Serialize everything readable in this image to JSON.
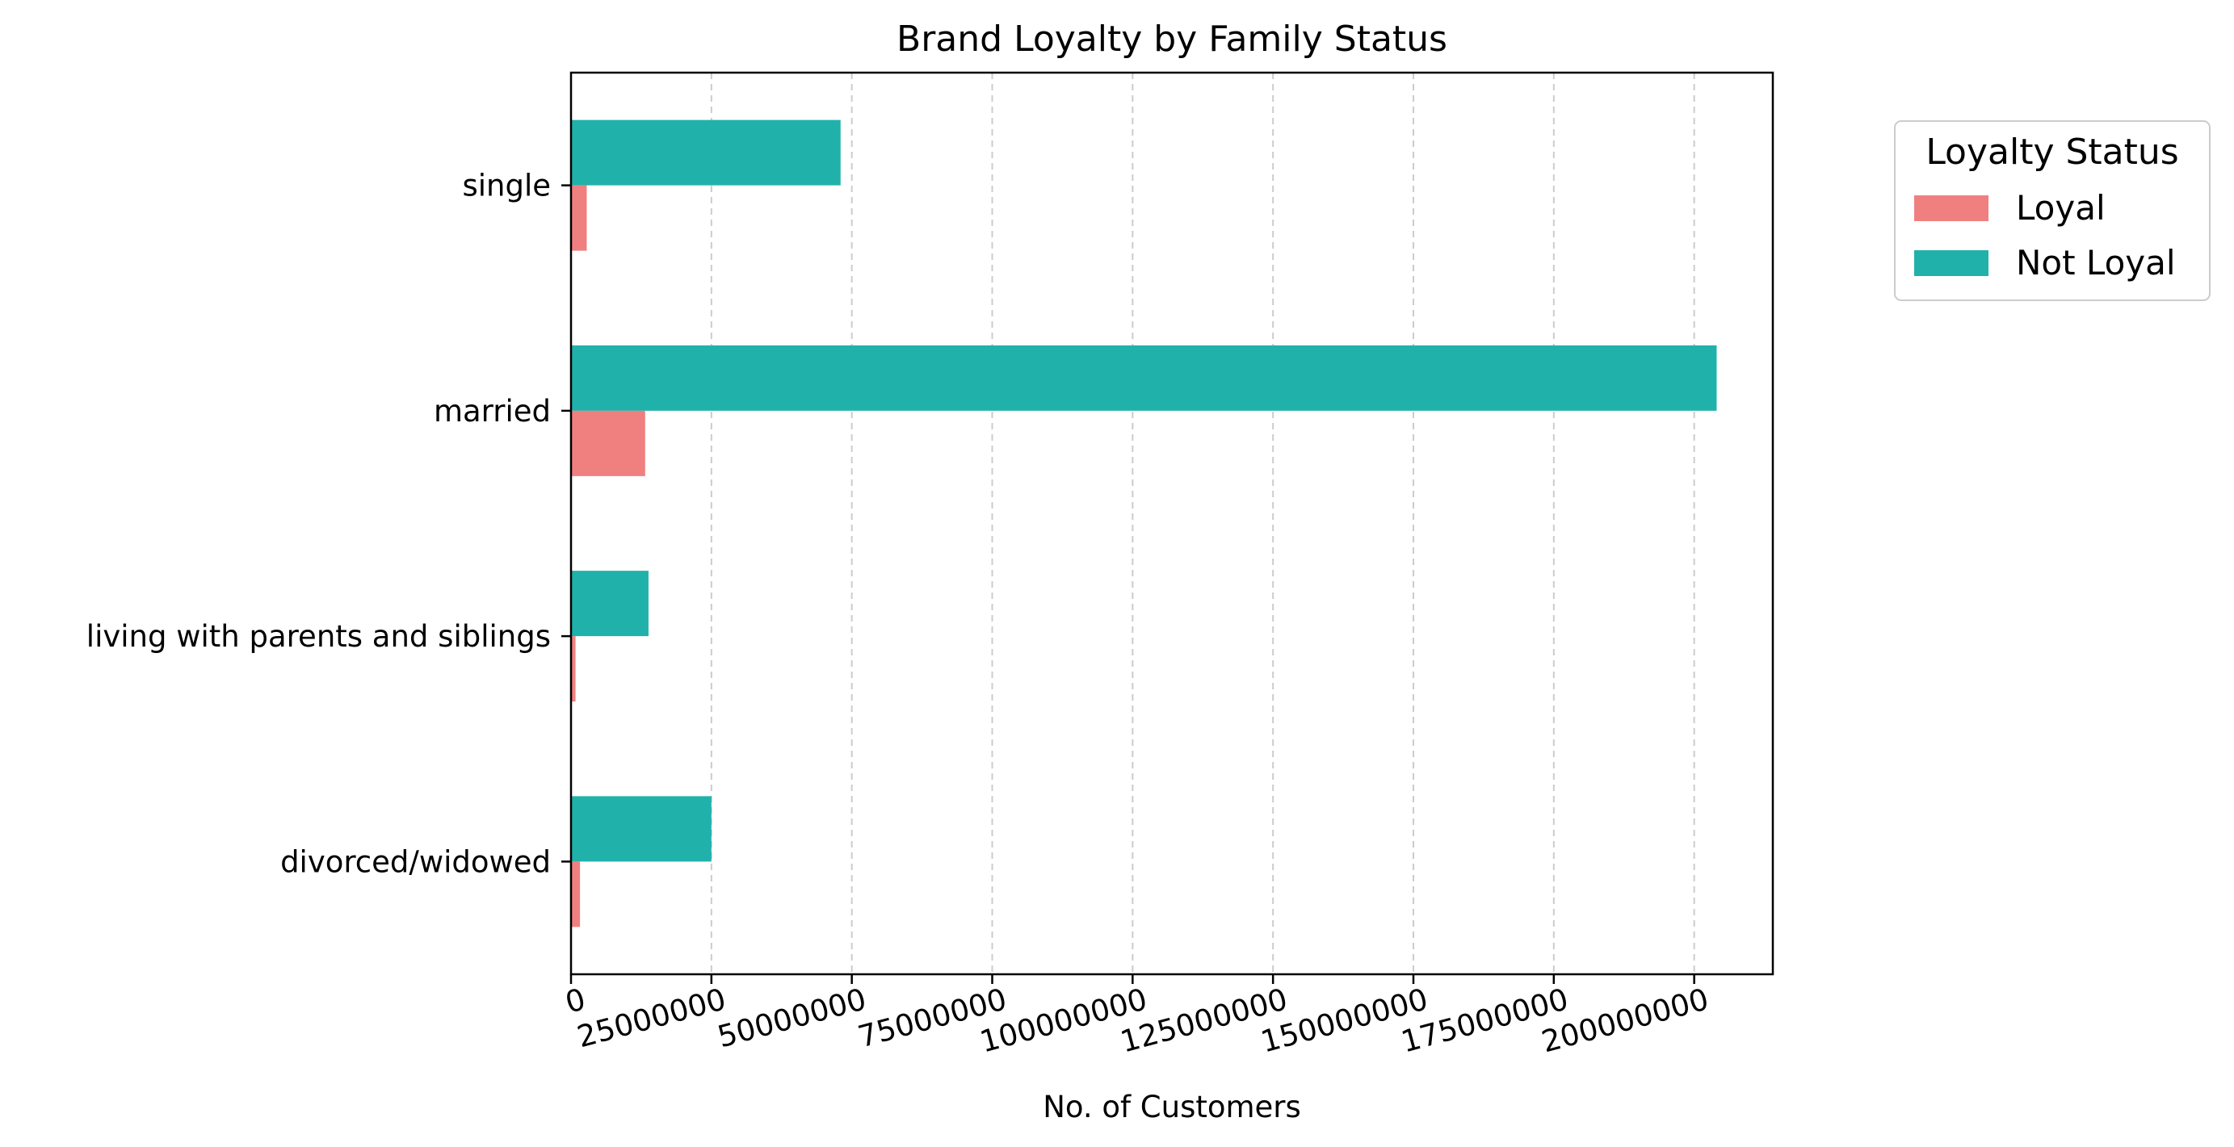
{
  "chart_data": {
    "type": "bar",
    "orientation": "horizontal",
    "title": "Brand Loyalty by Family Status",
    "xlabel": "No. of Customers",
    "ylabel": "",
    "categories": [
      "single",
      "married",
      "living with parents and siblings",
      "divorced/widowed"
    ],
    "series": [
      {
        "name": "Loyal",
        "color": "#F08080",
        "values": [
          2800000,
          13200000,
          800000,
          1600000
        ]
      },
      {
        "name": "Not Loyal",
        "color": "#20B2AA",
        "values": [
          48000000,
          204000000,
          13800000,
          25000000
        ]
      }
    ],
    "xlim": [
      0,
      214000000
    ],
    "xticks": [
      0,
      25000000,
      50000000,
      75000000,
      100000000,
      125000000,
      150000000,
      175000000,
      200000000
    ],
    "xtick_labels": [
      "0",
      "25000000",
      "50000000",
      "75000000",
      "100000000",
      "125000000",
      "150000000",
      "175000000",
      "200000000"
    ],
    "grid": {
      "x": true,
      "y": false,
      "style": "dashed"
    },
    "legend": {
      "title": "Loyalty Status",
      "placement": "outside-top-right"
    }
  }
}
